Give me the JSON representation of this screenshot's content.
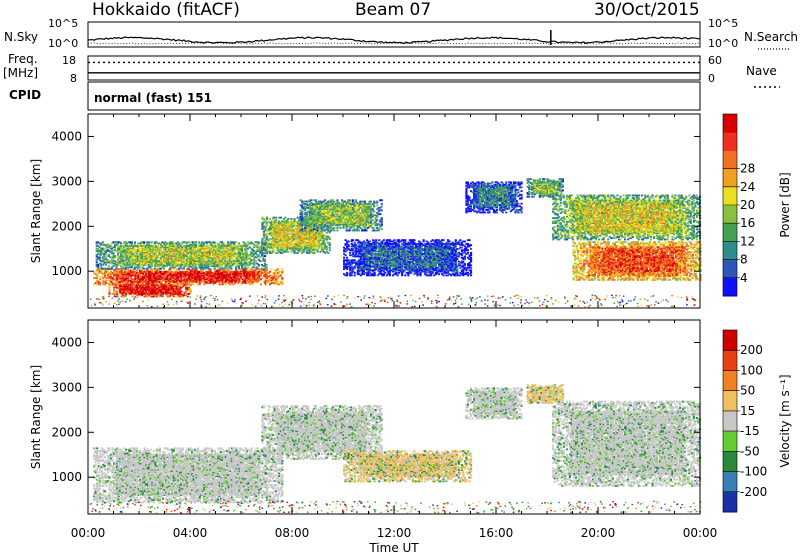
{
  "header": {
    "station": "Hokkaido (fitACF)",
    "beam": "Beam 07",
    "date": "30/Oct/2015"
  },
  "noise_panel": {
    "left_label": "N.Sky",
    "right_label": "N.Search",
    "left_ticks": [
      "10^5",
      "10^0"
    ],
    "right_ticks": [
      "10^5",
      "10^0"
    ]
  },
  "freq_panel": {
    "left_label_1": "Freq.",
    "left_label_2": "[MHz]",
    "right_label": "Nave",
    "left_ticks": [
      "18",
      "8"
    ],
    "right_ticks": [
      "60",
      "0"
    ],
    "frequency_mhz": 11.0,
    "nave": 44
  },
  "cpid_panel": {
    "label": "CPID",
    "value": "normal (fast) 151"
  },
  "chart_data": [
    {
      "type": "heatmap",
      "name_in_figure": "Power",
      "ylabel": "Slant Range [km]",
      "xlabel": "",
      "ylim": [
        180,
        4500
      ],
      "xlim_hours": [
        0,
        24
      ],
      "y_ticks": [
        "1000",
        "2000",
        "3000",
        "4000"
      ],
      "colorbar": {
        "label": "Power [dB]",
        "ticks": [
          "4",
          "8",
          "12",
          "16",
          "20",
          "24",
          "28"
        ],
        "colors": [
          "#1010ff",
          "#2f55b8",
          "#2e8e8e",
          "#44a055",
          "#88c040",
          "#e8e020",
          "#f0a020",
          "#f07020",
          "#ee3020",
          "#d80000"
        ]
      },
      "echo_regions": [
        {
          "t0": 0.2,
          "t1": 7.6,
          "r0": 700,
          "r1": 1050,
          "level": 0.92
        },
        {
          "t0": 0.8,
          "t1": 4.0,
          "r0": 430,
          "r1": 720,
          "level": 0.96
        },
        {
          "t0": 0.3,
          "t1": 7.0,
          "r0": 1050,
          "r1": 1650,
          "level": 0.5
        },
        {
          "t0": 6.8,
          "t1": 9.5,
          "r0": 1400,
          "r1": 2200,
          "level": 0.55
        },
        {
          "t0": 8.3,
          "t1": 11.5,
          "r0": 1900,
          "r1": 2600,
          "level": 0.45
        },
        {
          "t0": 10.0,
          "t1": 15.0,
          "r0": 900,
          "r1": 1700,
          "level": 0.2
        },
        {
          "t0": 14.8,
          "t1": 17.0,
          "r0": 2300,
          "r1": 3000,
          "level": 0.25
        },
        {
          "t0": 17.2,
          "t1": 18.6,
          "r0": 2650,
          "r1": 3050,
          "level": 0.45
        },
        {
          "t0": 18.2,
          "t1": 24.0,
          "r0": 1700,
          "r1": 2700,
          "level": 0.55
        },
        {
          "t0": 19.0,
          "t1": 24.0,
          "r0": 800,
          "r1": 1650,
          "level": 0.82
        }
      ]
    },
    {
      "type": "heatmap",
      "name_in_figure": "Velocity",
      "ylabel": "Slant Range [km]",
      "xlabel": "Time UT",
      "ylim": [
        180,
        4500
      ],
      "xlim_hours": [
        0,
        24
      ],
      "x_ticks": [
        "00:00",
        "04:00",
        "08:00",
        "12:00",
        "16:00",
        "20:00",
        "00:00"
      ],
      "y_ticks": [
        "1000",
        "2000",
        "3000",
        "4000"
      ],
      "colorbar": {
        "label": "Velocity [m s⁻¹]",
        "ticks": [
          "200",
          "100",
          "50",
          "15",
          "-15",
          "-50",
          "-100",
          "-200"
        ],
        "colors": [
          "#1a2fa8",
          "#3a7fb8",
          "#2a8a3a",
          "#66cc33",
          "#c8c8c8",
          "#f0c060",
          "#f08020",
          "#e84010",
          "#cc0000"
        ]
      },
      "echo_regions": [
        {
          "t0": 0.2,
          "t1": 7.6,
          "r0": 430,
          "r1": 1650,
          "level": 0.5
        },
        {
          "t0": 6.8,
          "t1": 11.5,
          "r0": 1400,
          "r1": 2600,
          "level": 0.5
        },
        {
          "t0": 10.0,
          "t1": 15.0,
          "r0": 900,
          "r1": 1600,
          "level": 0.75
        },
        {
          "t0": 14.8,
          "t1": 17.0,
          "r0": 2300,
          "r1": 3000,
          "level": 0.6
        },
        {
          "t0": 17.2,
          "t1": 18.6,
          "r0": 2650,
          "r1": 3050,
          "level": 0.8
        },
        {
          "t0": 18.2,
          "t1": 24.0,
          "r0": 800,
          "r1": 2700,
          "level": 0.5
        }
      ]
    }
  ]
}
